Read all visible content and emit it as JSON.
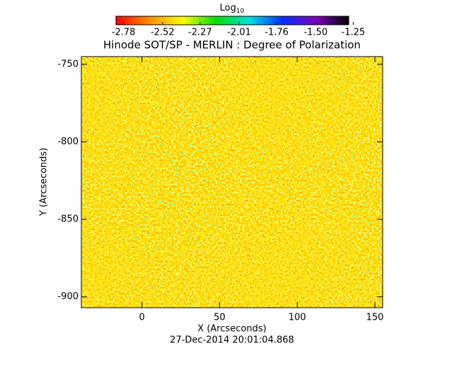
{
  "chart_data": {
    "type": "heatmap",
    "title": "Hinode SOT/SP - MERLIN : Degree of Polarization",
    "colorbar_title": "Log",
    "colorbar_title_sub": "10",
    "colorbar_lim": [
      -2.83,
      -1.28
    ],
    "colorbar_ticks": [
      -2.78,
      -2.52,
      -2.27,
      -2.01,
      -1.76,
      {
        "value": -1.5,
        "label": "-1.50"
      },
      -1.25
    ],
    "colorbar_colors": [
      "#ff0000",
      "#ff8c00",
      "#ffff00",
      "#00e000",
      "#00e0e0",
      "#0030ff",
      "#8000c0",
      "#000000"
    ],
    "xlabel": "X (Arcseconds)",
    "ylabel": "Y (Arcseconds)",
    "footer": "27-Dec-2014 20:01:04.868",
    "xlim": [
      -39,
      155
    ],
    "ylim": [
      -907,
      -745
    ],
    "xticks": [
      0,
      50,
      100,
      150
    ],
    "yticks": [
      -900,
      -850,
      -800,
      -750
    ]
  }
}
